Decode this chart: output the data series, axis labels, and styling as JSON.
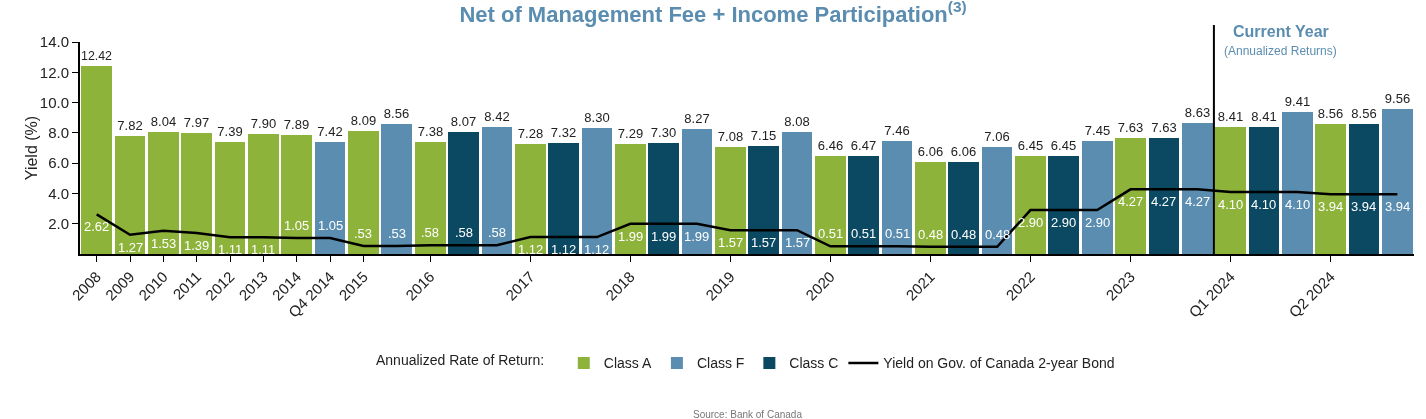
{
  "chart_data": {
    "type": "bar",
    "title": "Net of Management Fee + Income Participation$^{(3)}$",
    "ylabel": "Yield (%)",
    "legend_title": "Annualized Rate of Return:",
    "categories": [
      "2008",
      "2009",
      "2010",
      "2011",
      "2012",
      "2013",
      "2014",
      "Q4 2014",
      "2015",
      null,
      "2016",
      null,
      null,
      "2017",
      null,
      null,
      "2018",
      null,
      null,
      "2019",
      null,
      null,
      "2020",
      null,
      null,
      "2021",
      null,
      null,
      "2022",
      null,
      null,
      "2023",
      null,
      null,
      "Q1 2024",
      null,
      null,
      "Q2 2024",
      null,
      null
    ],
    "series": [
      {
        "name": "Class A",
        "color": "#8db33a",
        "values": [
          12.42,
          7.82,
          8.04,
          7.97,
          7.39,
          7.9,
          7.89,
          null,
          8.09,
          null,
          7.38,
          null,
          null,
          7.28,
          null,
          null,
          7.29,
          null,
          null,
          7.08,
          null,
          null,
          6.46,
          null,
          null,
          6.06,
          null,
          null,
          6.45,
          null,
          null,
          7.63,
          null,
          null,
          8.41,
          null,
          null,
          8.56,
          null,
          null
        ],
        "value_labels": [
          "12.42",
          "7.82",
          "8.04",
          "7.97",
          "7.39",
          "7.90",
          "7.89",
          null,
          "8.09",
          null,
          "7.38",
          null,
          null,
          "7.28",
          null,
          null,
          "7.29",
          null,
          null,
          "7.08",
          null,
          null,
          "6.46",
          null,
          null,
          "6.06",
          null,
          null,
          "6.45",
          null,
          null,
          "7.63",
          null,
          null,
          "8.41",
          null,
          null,
          "8.56",
          null,
          null
        ]
      },
      {
        "name": "Class F",
        "color": "#5b8db0",
        "values": [
          null,
          null,
          null,
          null,
          null,
          null,
          null,
          7.42,
          null,
          8.56,
          null,
          null,
          8.42,
          null,
          null,
          8.3,
          null,
          null,
          8.27,
          null,
          null,
          8.08,
          null,
          null,
          7.46,
          null,
          null,
          7.06,
          null,
          null,
          7.45,
          null,
          null,
          8.63,
          null,
          null,
          9.41,
          null,
          null,
          9.56
        ],
        "value_labels": [
          null,
          null,
          null,
          null,
          null,
          null,
          null,
          "7.42",
          null,
          "8.56",
          null,
          null,
          "8.42",
          null,
          null,
          "8.30",
          null,
          null,
          "8.27",
          null,
          null,
          "8.08",
          null,
          null,
          "7.46",
          null,
          null,
          "7.06",
          null,
          null,
          "7.45",
          null,
          null,
          "8.63",
          null,
          null,
          "9.41",
          null,
          null,
          "9.56"
        ]
      },
      {
        "name": "Class C",
        "color": "#0b4862",
        "values": [
          null,
          null,
          null,
          null,
          null,
          null,
          null,
          null,
          null,
          null,
          null,
          8.07,
          null,
          null,
          7.32,
          null,
          null,
          7.3,
          null,
          null,
          7.15,
          null,
          null,
          6.47,
          null,
          null,
          6.06,
          null,
          null,
          6.45,
          null,
          null,
          7.63,
          null,
          null,
          8.41,
          null,
          null,
          8.56,
          null
        ],
        "value_labels": [
          null,
          null,
          null,
          null,
          null,
          null,
          null,
          null,
          null,
          null,
          null,
          "8.07",
          null,
          null,
          "7.32",
          null,
          null,
          "7.30",
          null,
          null,
          "7.15",
          null,
          null,
          "6.47",
          null,
          null,
          "6.06",
          null,
          null,
          "6.45",
          null,
          null,
          "7.63",
          null,
          null,
          "8.41",
          null,
          null,
          "8.56",
          null
        ]
      },
      {
        "name": "Yield on Gov. of Canada 2-year Bond",
        "type": "line",
        "color": "#000000",
        "values": [
          2.62,
          1.27,
          1.53,
          1.39,
          1.11,
          1.11,
          1.05,
          1.05,
          0.53,
          0.53,
          0.58,
          0.58,
          0.58,
          1.12,
          1.12,
          1.12,
          1.99,
          1.99,
          1.99,
          1.57,
          1.57,
          1.57,
          0.51,
          0.51,
          0.51,
          0.48,
          0.48,
          0.48,
          2.9,
          2.9,
          2.9,
          4.27,
          4.27,
          4.27,
          4.1,
          4.1,
          4.1,
          3.94,
          3.94,
          3.94
        ],
        "value_labels": [
          "2.62",
          "1.27",
          "1.53",
          "1.39",
          "1.11",
          "1.11",
          "1.05",
          "1.05",
          ".53",
          ".53",
          ".58",
          ".58",
          ".58",
          "1.12",
          "1.12",
          "1.12",
          "1.99",
          "1.99",
          "1.99",
          "1.57",
          "1.57",
          "1.57",
          "0.51",
          "0.51",
          "0.51",
          "0.48",
          "0.48",
          "0.48",
          "2.90",
          "2.90",
          "2.90",
          "4.27",
          "4.27",
          "4.27",
          "4.10",
          "4.10",
          "4.10",
          "3.94",
          "3.94",
          "3.94"
        ]
      }
    ],
    "ylim": [
      0,
      14
    ],
    "yticks": [
      {
        "value": 2,
        "label": "2.0"
      },
      {
        "value": 4,
        "label": "4.0"
      },
      {
        "value": 6,
        "label": "6.0"
      },
      {
        "value": 8,
        "label": "8.0"
      },
      {
        "value": 10,
        "label": "10.0"
      },
      {
        "value": 12,
        "label": "12.0"
      },
      {
        "value": 14,
        "label": "14.0"
      }
    ],
    "ref_lines": [
      {
        "axis": "x",
        "value": "Q1 2024",
        "label": "Current Year",
        "color": "#000000"
      }
    ],
    "annotations": [
      "(Annualized Returns)",
      "Source: Bank of Canada"
    ],
    "legend": "bottom"
  }
}
